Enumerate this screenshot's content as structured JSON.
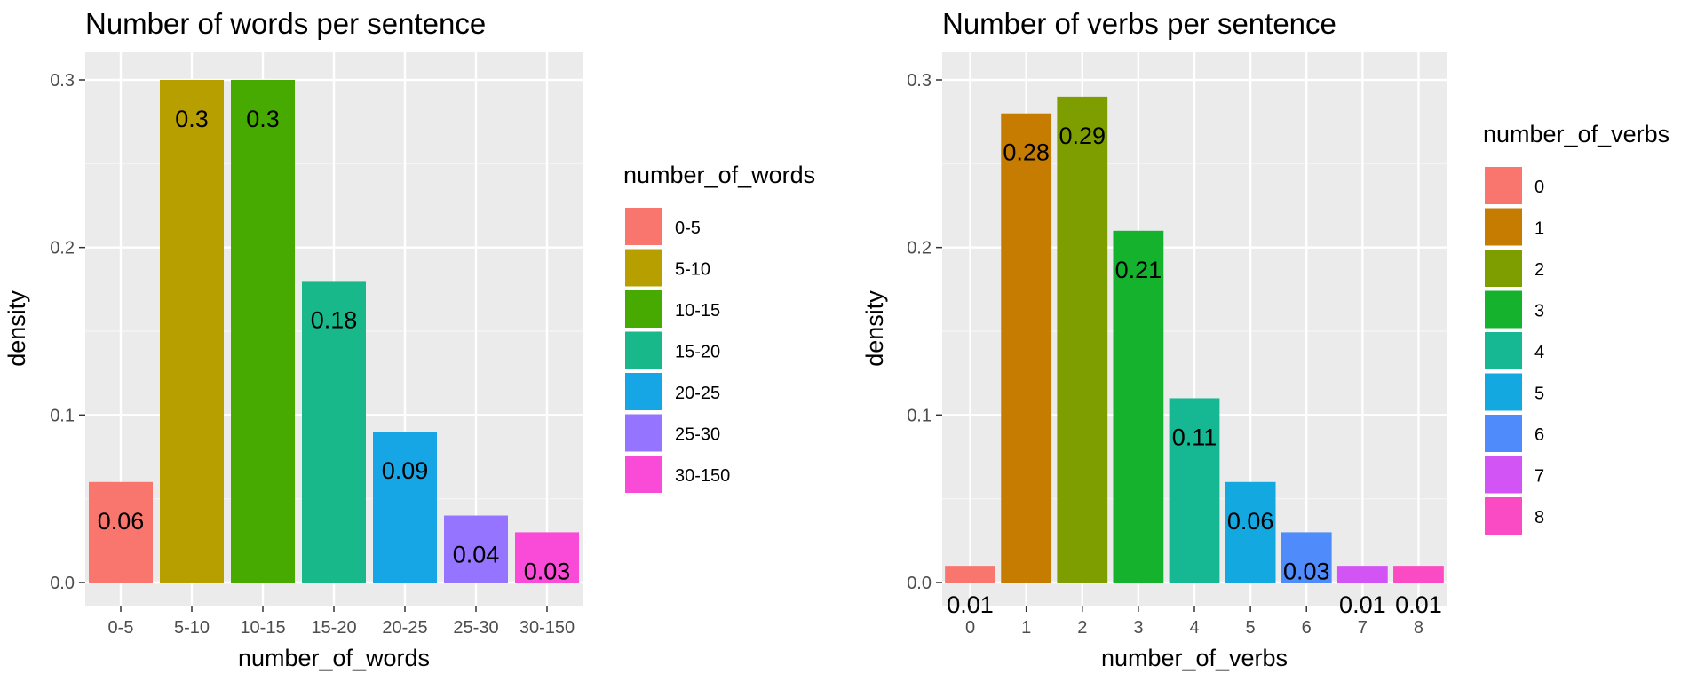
{
  "chart_data": [
    {
      "type": "bar",
      "title": "Number of words per sentence",
      "xlabel": "number_of_words",
      "ylabel": "density",
      "ylim": [
        0,
        0.3
      ],
      "yticks": [
        "0.0",
        "0.1",
        "0.2",
        "0.3"
      ],
      "categories": [
        "0-5",
        "5-10",
        "10-15",
        "15-20",
        "20-25",
        "25-30",
        "30-150"
      ],
      "values": [
        0.06,
        0.3,
        0.3,
        0.18,
        0.09,
        0.04,
        0.03
      ],
      "labels": [
        "0.06",
        "0.3",
        "0.3",
        "0.18",
        "0.09",
        "0.04",
        "0.03"
      ],
      "colors": [
        "#F8766D",
        "#B79F00",
        "#47AA00",
        "#19B88A",
        "#16A6E6",
        "#9575FF",
        "#F94BD8"
      ],
      "legend": {
        "title": "number_of_words",
        "placement": "right",
        "entries": [
          "0-5",
          "5-10",
          "10-15",
          "15-20",
          "20-25",
          "25-30",
          "30-150"
        ]
      },
      "grid": true
    },
    {
      "type": "bar",
      "title": "Number of verbs per sentence",
      "xlabel": "number_of_verbs",
      "ylabel": "density",
      "ylim": [
        0,
        0.3
      ],
      "yticks": [
        "0.0",
        "0.1",
        "0.2",
        "0.3"
      ],
      "categories": [
        "0",
        "1",
        "2",
        "3",
        "4",
        "5",
        "6",
        "7",
        "8"
      ],
      "values": [
        0.01,
        0.28,
        0.29,
        0.21,
        0.11,
        0.06,
        0.03,
        0.01,
        0.01
      ],
      "labels": [
        "0.01",
        "0.28",
        "0.29",
        "0.21",
        "0.11",
        "0.06",
        "0.03",
        "0.01",
        "0.01"
      ],
      "colors": [
        "#F8766D",
        "#C57C00",
        "#7E9E00",
        "#14B22D",
        "#15B892",
        "#14A8E0",
        "#508BFB",
        "#D254F5",
        "#FB4BC4"
      ],
      "legend": {
        "title": "number_of_verbs",
        "placement": "right",
        "entries": [
          "0",
          "1",
          "2",
          "3",
          "4",
          "5",
          "6",
          "7",
          "8"
        ]
      },
      "grid": true
    }
  ]
}
